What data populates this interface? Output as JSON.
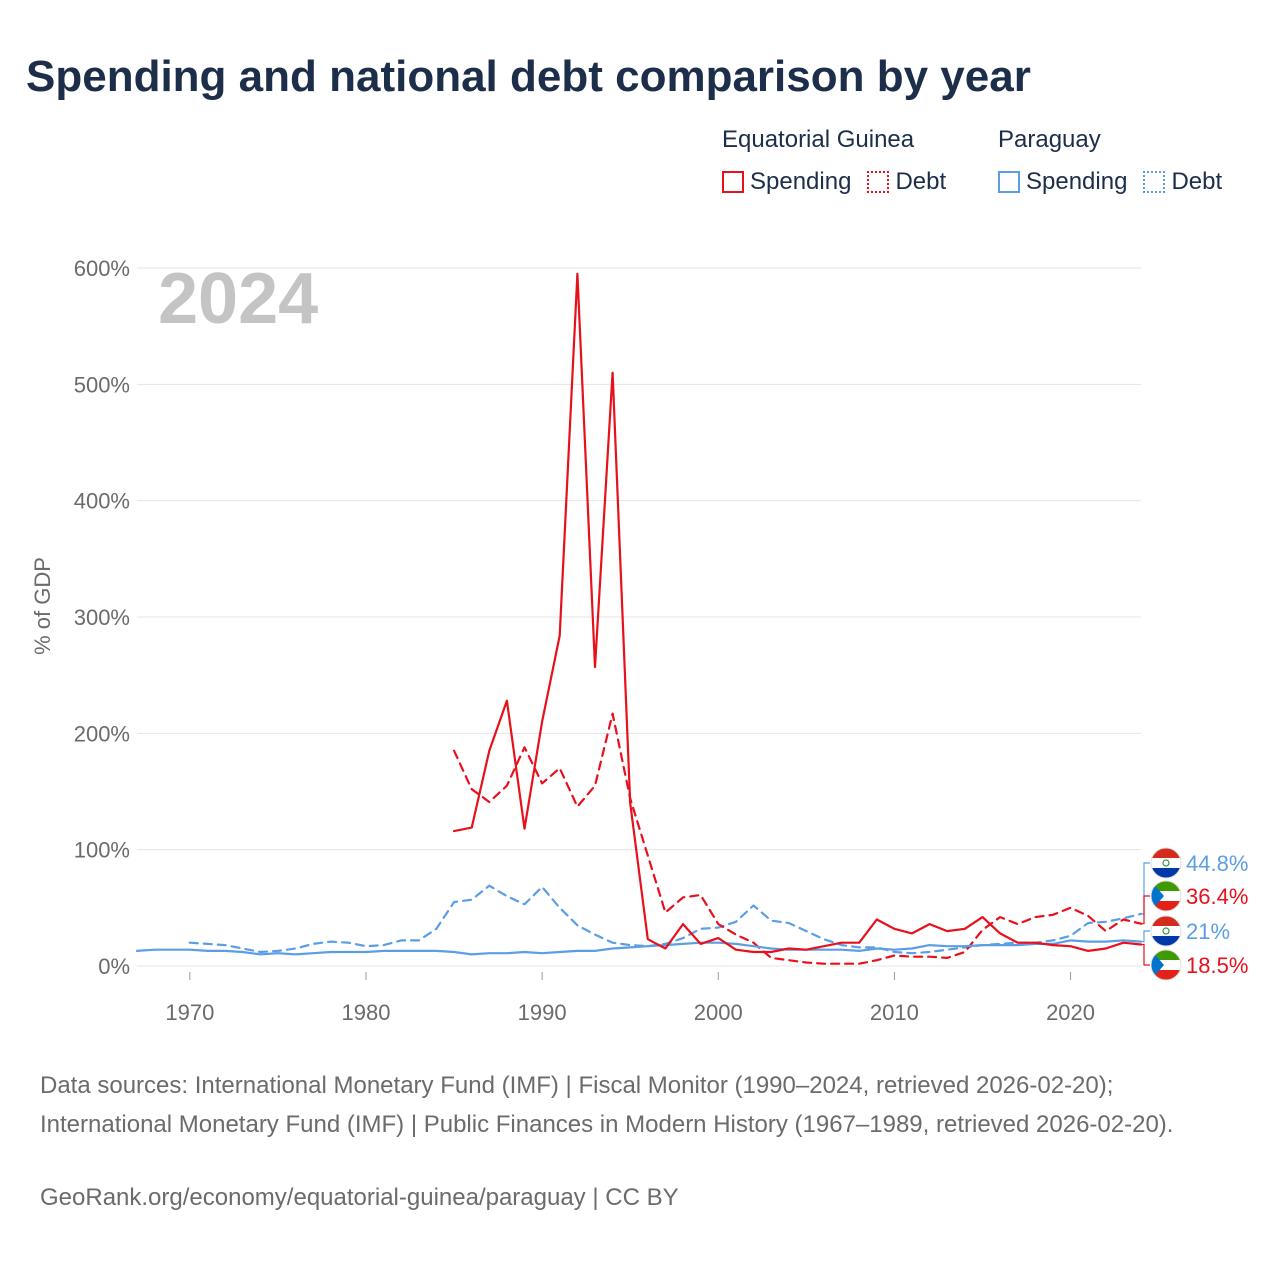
{
  "title": "Spending and national debt comparison by year",
  "legend": {
    "groups": [
      {
        "name": "Equatorial Guinea",
        "color": "#e8101b",
        "items": [
          {
            "label": "Spending",
            "style": "solid"
          },
          {
            "label": "Debt",
            "style": "dotted"
          }
        ]
      },
      {
        "name": "Paraguay",
        "color": "#5b9ee6",
        "items": [
          {
            "label": "Spending",
            "style": "solid"
          },
          {
            "label": "Debt",
            "style": "dotted"
          }
        ]
      }
    ]
  },
  "year_overlay": "2024",
  "colors": {
    "eg": "#e8101b",
    "py": "#5b9ee6"
  },
  "sources": "Data sources: International Monetary Fund (IMF) | Fiscal Monitor (1990–2024, retrieved 2026-02-20); International Monetary Fund (IMF) | Public Finances in Modern History (1967–1989, retrieved 2026-02-20).",
  "credit": "GeoRank.org/economy/equatorial-guinea/paraguay | CC BY",
  "chart_data": {
    "type": "line",
    "title": "Spending and national debt comparison by year",
    "xlabel": "",
    "ylabel": "% of GDP",
    "xlim": [
      1967,
      2024
    ],
    "ylim": [
      0,
      600
    ],
    "x_ticks": [
      1970,
      1980,
      1990,
      2000,
      2010,
      2020
    ],
    "x_tick_labels": [
      "1970",
      "1980",
      "1990",
      "2000",
      "2010",
      "2020"
    ],
    "y_ticks": [
      0,
      100,
      200,
      300,
      400,
      500,
      600
    ],
    "y_tick_labels": [
      "0%",
      "100%",
      "200%",
      "300%",
      "400%",
      "500%",
      "600%"
    ],
    "grid": true,
    "series": [
      {
        "name": "Equatorial Guinea Spending",
        "country": "Equatorial Guinea",
        "measure": "Spending",
        "color": "#e8101b",
        "dash": "solid",
        "x": [
          1985,
          1986,
          1987,
          1988,
          1989,
          1990,
          1991,
          1992,
          1993,
          1994,
          1995,
          1996,
          1997,
          1998,
          1999,
          2000,
          2001,
          2002,
          2003,
          2004,
          2005,
          2006,
          2007,
          2008,
          2009,
          2010,
          2011,
          2012,
          2013,
          2014,
          2015,
          2016,
          2017,
          2018,
          2019,
          2020,
          2021,
          2022,
          2023,
          2024
        ],
        "values": [
          116,
          119,
          185,
          228,
          118,
          210,
          284,
          595,
          257,
          510,
          140,
          23,
          15,
          36,
          19,
          24,
          14,
          12,
          12,
          15,
          14,
          17,
          20,
          20,
          40,
          32,
          28,
          36,
          30,
          32,
          42,
          28,
          20,
          20,
          18,
          17,
          13,
          15,
          20,
          18.5
        ]
      },
      {
        "name": "Equatorial Guinea Debt",
        "country": "Equatorial Guinea",
        "measure": "Debt",
        "color": "#e8101b",
        "dash": "dashed",
        "x": [
          1985,
          1986,
          1987,
          1988,
          1989,
          1990,
          1991,
          1992,
          1993,
          1994,
          1995,
          1996,
          1997,
          1998,
          1999,
          2000,
          2001,
          2002,
          2003,
          2004,
          2005,
          2006,
          2007,
          2008,
          2009,
          2010,
          2011,
          2012,
          2013,
          2014,
          2015,
          2016,
          2017,
          2018,
          2019,
          2020,
          2021,
          2022,
          2023,
          2024
        ],
        "values": [
          185,
          152,
          141,
          155,
          188,
          157,
          170,
          137,
          155,
          217,
          144,
          95,
          46,
          59,
          61,
          36,
          27,
          20,
          7,
          5,
          3,
          2,
          2,
          2,
          5,
          9,
          8,
          8,
          7,
          12,
          31,
          42,
          36,
          42,
          44,
          50,
          43,
          30,
          40,
          36.4
        ]
      },
      {
        "name": "Paraguay Spending",
        "country": "Paraguay",
        "measure": "Spending",
        "color": "#5b9ee6",
        "dash": "solid",
        "x": [
          1967,
          1968,
          1969,
          1970,
          1971,
          1972,
          1973,
          1974,
          1975,
          1976,
          1977,
          1978,
          1979,
          1980,
          1981,
          1982,
          1983,
          1984,
          1985,
          1986,
          1987,
          1988,
          1989,
          1990,
          1991,
          1992,
          1993,
          1994,
          1995,
          1996,
          1997,
          1998,
          1999,
          2000,
          2001,
          2002,
          2003,
          2004,
          2005,
          2006,
          2007,
          2008,
          2009,
          2010,
          2011,
          2012,
          2013,
          2014,
          2015,
          2016,
          2017,
          2018,
          2019,
          2020,
          2021,
          2022,
          2023,
          2024
        ],
        "values": [
          13,
          14,
          14,
          14,
          13,
          13,
          12,
          10,
          11,
          10,
          11,
          12,
          12,
          12,
          13,
          13,
          13,
          13,
          12,
          10,
          11,
          11,
          12,
          11,
          12,
          13,
          13,
          15,
          16,
          17,
          18,
          19,
          20,
          20,
          19,
          17,
          15,
          14,
          14,
          14,
          14,
          13,
          15,
          14,
          15,
          18,
          17,
          17,
          18,
          18,
          18,
          19,
          19,
          22,
          21,
          21,
          22,
          21
        ]
      },
      {
        "name": "Paraguay Debt",
        "country": "Paraguay",
        "measure": "Debt",
        "color": "#5b9ee6",
        "dash": "dashed",
        "x": [
          1970,
          1971,
          1972,
          1973,
          1974,
          1975,
          1976,
          1977,
          1978,
          1979,
          1980,
          1981,
          1982,
          1983,
          1984,
          1985,
          1986,
          1987,
          1988,
          1989,
          1990,
          1991,
          1992,
          1993,
          1994,
          1995,
          1996,
          1997,
          1998,
          1999,
          2000,
          2001,
          2002,
          2003,
          2004,
          2005,
          2006,
          2007,
          2008,
          2009,
          2010,
          2011,
          2012,
          2013,
          2014,
          2015,
          2016,
          2017,
          2018,
          2019,
          2020,
          2021,
          2022,
          2023,
          2024
        ],
        "values": [
          20,
          19,
          18,
          15,
          12,
          13,
          15,
          19,
          21,
          20,
          17,
          18,
          22,
          22,
          32,
          55,
          57,
          69,
          60,
          53,
          68,
          50,
          35,
          27,
          20,
          18,
          17,
          19,
          24,
          32,
          33,
          38,
          52,
          39,
          37,
          30,
          23,
          18,
          16,
          16,
          12,
          11,
          12,
          14,
          16,
          18,
          19,
          20,
          20,
          22,
          26,
          37,
          38,
          41,
          44.8
        ]
      }
    ],
    "end_labels": [
      {
        "series": "Paraguay Debt",
        "text": "44.8%",
        "color": "#5b9ee6",
        "flag": "paraguay"
      },
      {
        "series": "Equatorial Guinea Debt",
        "text": "36.4%",
        "color": "#e8101b",
        "flag": "equatorial-guinea"
      },
      {
        "series": "Paraguay Spending",
        "text": "21%",
        "color": "#5b9ee6",
        "flag": "paraguay"
      },
      {
        "series": "Equatorial Guinea Spending",
        "text": "18.5%",
        "color": "#e8101b",
        "flag": "equatorial-guinea"
      }
    ]
  }
}
